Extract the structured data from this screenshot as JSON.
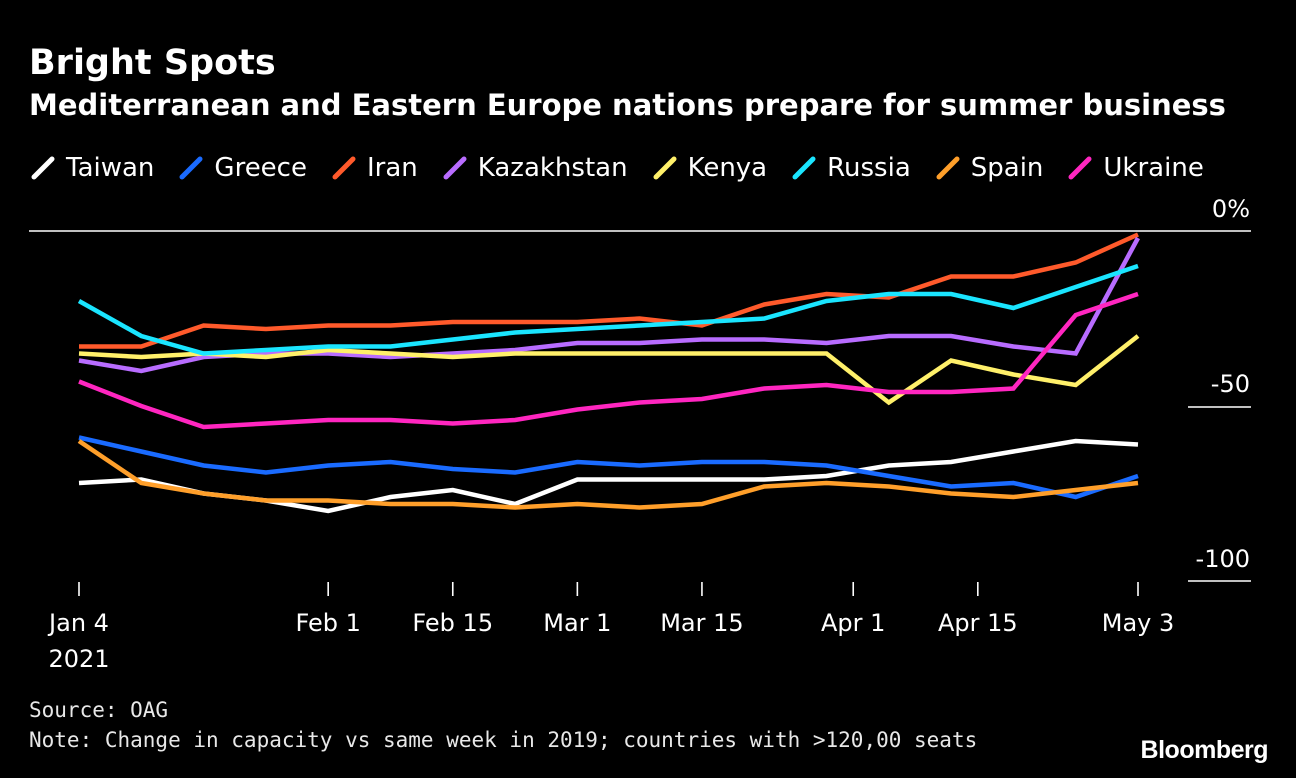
{
  "header": {
    "title": "Bright Spots",
    "subtitle": "Mediterranean and Eastern Europe nations prepare for summer business"
  },
  "footer": {
    "source": "Source: OAG",
    "note": "Note: Change in capacity vs same week in 2019; countries with >120,00 seats",
    "brand": "Bloomberg"
  },
  "chart_data": {
    "type": "line",
    "title": "Bright Spots",
    "subtitle": "Mediterranean and Eastern Europe nations prepare for summer business",
    "xlabel": "",
    "ylabel": "",
    "ylim": [
      -100,
      0
    ],
    "y_ticks": [
      {
        "value": 0,
        "label": "0%"
      },
      {
        "value": -50,
        "label": "-50"
      },
      {
        "value": -100,
        "label": "-100"
      }
    ],
    "x_ticks": [
      {
        "date": "2021-01-04",
        "label": "Jan 4",
        "sublabel": "2021"
      },
      {
        "date": "2021-02-01",
        "label": "Feb 1"
      },
      {
        "date": "2021-02-15",
        "label": "Feb 15"
      },
      {
        "date": "2021-03-01",
        "label": "Mar 1"
      },
      {
        "date": "2021-03-15",
        "label": "Mar 15"
      },
      {
        "date": "2021-04-01",
        "label": "Apr 1"
      },
      {
        "date": "2021-04-15",
        "label": "Apr 15"
      },
      {
        "date": "2021-05-03",
        "label": "May 3"
      }
    ],
    "x": [
      "2021-01-04",
      "2021-01-11",
      "2021-01-18",
      "2021-01-25",
      "2021-02-01",
      "2021-02-08",
      "2021-02-15",
      "2021-02-22",
      "2021-03-01",
      "2021-03-08",
      "2021-03-15",
      "2021-03-22",
      "2021-03-29",
      "2021-04-05",
      "2021-04-12",
      "2021-04-19",
      "2021-04-26",
      "2021-05-03"
    ],
    "legend_position": "top",
    "grid": false,
    "series": [
      {
        "name": "Taiwan",
        "color": "#ffffff",
        "values": [
          -72,
          -71,
          -75,
          -77,
          -80,
          -76,
          -74,
          -78,
          -71,
          -71,
          -71,
          -71,
          -70,
          -67,
          -66,
          -63,
          -60,
          -61
        ]
      },
      {
        "name": "Greece",
        "color": "#1a6bff",
        "values": [
          -59,
          -63,
          -67,
          -69,
          -67,
          -66,
          -68,
          -69,
          -66,
          -67,
          -66,
          -66,
          -67,
          -70,
          -73,
          -72,
          -76,
          -70
        ]
      },
      {
        "name": "Iran",
        "color": "#ff5a2b",
        "values": [
          -33,
          -33,
          -27,
          -28,
          -27,
          -27,
          -26,
          -26,
          -26,
          -25,
          -27,
          -21,
          -18,
          -19,
          -13,
          -13,
          -9,
          -1
        ]
      },
      {
        "name": "Kazakhstan",
        "color": "#b86cff",
        "values": [
          -37,
          -40,
          -36,
          -35,
          -35,
          -36,
          -35,
          -34,
          -32,
          -32,
          -31,
          -31,
          -32,
          -30,
          -30,
          -33,
          -35,
          -2
        ]
      },
      {
        "name": "Kenya",
        "color": "#fff06a",
        "values": [
          -35,
          -36,
          -35,
          -36,
          -34,
          -35,
          -36,
          -35,
          -35,
          -35,
          -35,
          -35,
          -35,
          -49,
          -37,
          -41,
          -44,
          -30
        ]
      },
      {
        "name": "Russia",
        "color": "#1ae5ff",
        "values": [
          -20,
          -30,
          -35,
          -34,
          -33,
          -33,
          -31,
          -29,
          -28,
          -27,
          -26,
          -25,
          -20,
          -18,
          -18,
          -22,
          -16,
          -10
        ]
      },
      {
        "name": "Spain",
        "color": "#ff9f2a",
        "values": [
          -60,
          -72,
          -75,
          -77,
          -77,
          -78,
          -78,
          -79,
          -78,
          -79,
          -78,
          -73,
          -72,
          -73,
          -75,
          -76,
          -74,
          -72
        ]
      },
      {
        "name": "Ukraine",
        "color": "#ff26c0",
        "values": [
          -43,
          -50,
          -56,
          -55,
          -54,
          -54,
          -55,
          -54,
          -51,
          -49,
          -48,
          -45,
          -44,
          -46,
          -46,
          -45,
          -24,
          -18
        ]
      }
    ]
  }
}
